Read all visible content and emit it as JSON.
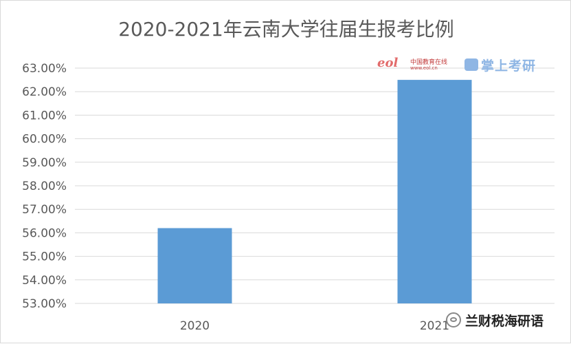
{
  "chart_data": {
    "type": "bar",
    "title": "2020-2021年云南大学往届生报考比例",
    "categories": [
      "2020",
      "2021"
    ],
    "values": [
      0.562,
      0.625
    ],
    "ylim": [
      0.53,
      0.63
    ],
    "yticks": [
      "53.00%",
      "54.00%",
      "55.00%",
      "56.00%",
      "57.00%",
      "58.00%",
      "59.00%",
      "60.00%",
      "61.00%",
      "62.00%",
      "63.00%"
    ],
    "bar_color": "#5b9bd5",
    "grid": true
  },
  "watermark": {
    "left_logo": "eol",
    "left_text": "中国教育在线",
    "left_sub": "www.eol.cn",
    "right_text": "掌上考研"
  },
  "source_tag": {
    "text": "兰财税海研语"
  }
}
